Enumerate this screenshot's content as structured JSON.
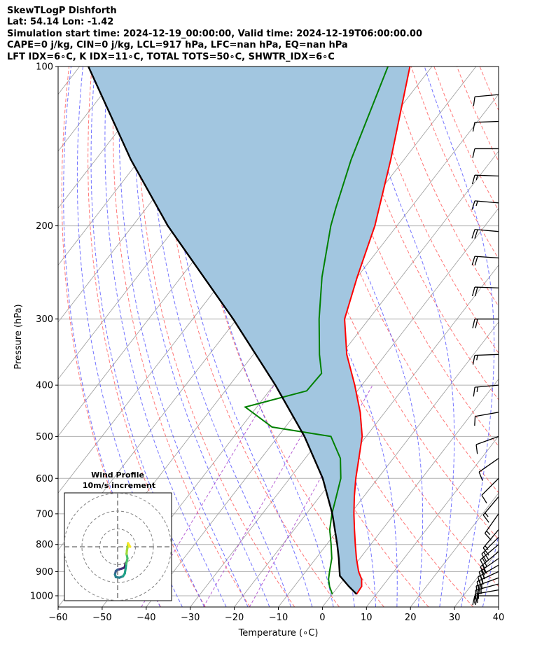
{
  "header": {
    "line1": "SkewTLogP Dishforth",
    "line2": "Lat: 54.14   Lon: -1.42",
    "line3": "Simulation start time: 2024-12-19_00:00:00, Valid time: 2024-12-19T06:00:00.00",
    "line4": "CAPE=0 j/kg, CIN=0 j/kg, LCL=917 hPa, LFC=nan hPa, EQ=nan hPa",
    "line5": "LFT IDX=6∘C, K IDX=11∘C, TOTAL TOTS=50∘C, SHWTR_IDX=6∘C"
  },
  "chart_data": {
    "type": "line",
    "xlabel": "Temperature (∘C)",
    "ylabel": "Pressure (hPa)",
    "xlim": [
      -60,
      40
    ],
    "ylim": [
      1050,
      100
    ],
    "y_scale": "log",
    "grid": true,
    "x_ticks": [
      "−60",
      "−50",
      "−40",
      "−30",
      "−20",
      "−10",
      "0",
      "10",
      "20",
      "30",
      "40"
    ],
    "y_ticks": [
      "100",
      "200",
      "300",
      "400",
      "500",
      "600",
      "700",
      "800",
      "900",
      "1000"
    ],
    "colors": {
      "temperature": "#ff0000",
      "dewpoint": "#008000",
      "parcel": "#000000",
      "cin_shade": "#a2c6e0",
      "dry_adiabat": "#ff5555",
      "moist_adiabat": "#4444ff",
      "mixing_ratio": "#aa44cc"
    },
    "series": [
      {
        "p": [
          993,
          960,
          930,
          900,
          850,
          800,
          750,
          700,
          650,
          600,
          550,
          500,
          450,
          400,
          350,
          300,
          250,
          200,
          150,
          100
        ],
        "values": [
          5.5,
          5.3,
          4.0,
          2.0,
          -0.8,
          -3.5,
          -6.3,
          -9.2,
          -12.1,
          -15.0,
          -17.8,
          -20.9,
          -25.6,
          -31.6,
          -38.8,
          -45.5,
          -50.0,
          -55.0,
          -63.0,
          -75.0
        ]
      },
      {
        "p": [
          993,
          960,
          930,
          900,
          850,
          800,
          750,
          700,
          650,
          600,
          550,
          500,
          480,
          440,
          410,
          380,
          350,
          300,
          250,
          200,
          185,
          150,
          100
        ],
        "values": [
          0.0,
          -2.0,
          -3.5,
          -4.6,
          -6.4,
          -9.0,
          -11.9,
          -14.2,
          -16.2,
          -18.4,
          -22.0,
          -28.0,
          -43.0,
          -52.6,
          -41.5,
          -41.2,
          -45.0,
          -51.3,
          -58.0,
          -65.0,
          -67.0,
          -72.0,
          -80.0
        ]
      },
      {
        "p": [
          993,
          960,
          917,
          850,
          800,
          700,
          600,
          500,
          400,
          300,
          200,
          150,
          100
        ],
        "values": [
          5.5,
          2.4,
          -1.5,
          -4.8,
          -7.6,
          -14.1,
          -22.5,
          -34.0,
          -49.6,
          -70.8,
          -102.0,
          -122.0,
          -148.0
        ]
      }
    ],
    "wind_profile": {
      "title": "Wind Profile",
      "subtitle": "10m/s increment",
      "u": [
        4.5,
        4.3,
        4.0,
        3.0,
        2.0,
        1.0,
        0.0,
        -1.0,
        -1.5,
        -1.0,
        1.0,
        3.0,
        4.0,
        4.5,
        4.8,
        5.5,
        5.0,
        5.2,
        5.6,
        5.8,
        7.0,
        6.5
      ],
      "v": [
        -9.0,
        -10.0,
        -11.5,
        -12.0,
        -12.3,
        -12.6,
        -12.8,
        -13.6,
        -15.5,
        -17.0,
        -17.3,
        -16.5,
        -15.0,
        -12.0,
        -9.5,
        -6.5,
        -4.0,
        -2.0,
        0.0,
        2.0,
        0.0,
        0.3
      ]
    },
    "wind_barbs": [
      {
        "p": 1000,
        "speed": 20,
        "dir": 270
      },
      {
        "p": 975,
        "speed": 22,
        "dir": 280
      },
      {
        "p": 950,
        "speed": 25,
        "dir": 285
      },
      {
        "p": 925,
        "speed": 27,
        "dir": 290
      },
      {
        "p": 900,
        "speed": 28,
        "dir": 295
      },
      {
        "p": 875,
        "speed": 26,
        "dir": 300
      },
      {
        "p": 850,
        "speed": 25,
        "dir": 305
      },
      {
        "p": 825,
        "speed": 23,
        "dir": 310
      },
      {
        "p": 800,
        "speed": 22,
        "dir": 310
      },
      {
        "p": 775,
        "speed": 20,
        "dir": 315
      },
      {
        "p": 750,
        "speed": 18,
        "dir": 320
      },
      {
        "p": 700,
        "speed": 16,
        "dir": 325
      },
      {
        "p": 650,
        "speed": 15,
        "dir": 320
      },
      {
        "p": 600,
        "speed": 14,
        "dir": 315
      },
      {
        "p": 550,
        "speed": 12,
        "dir": 305
      },
      {
        "p": 500,
        "speed": 10,
        "dir": 290
      },
      {
        "p": 450,
        "speed": 12,
        "dir": 280
      },
      {
        "p": 400,
        "speed": 15,
        "dir": 275
      },
      {
        "p": 350,
        "speed": 17,
        "dir": 272
      },
      {
        "p": 300,
        "speed": 20,
        "dir": 270
      },
      {
        "p": 262,
        "speed": 22,
        "dir": 268
      },
      {
        "p": 230,
        "speed": 22,
        "dir": 266
      },
      {
        "p": 205,
        "speed": 20,
        "dir": 265
      },
      {
        "p": 181,
        "speed": 18,
        "dir": 265
      },
      {
        "p": 161,
        "speed": 15,
        "dir": 268
      },
      {
        "p": 143,
        "speed": 14,
        "dir": 270
      },
      {
        "p": 127,
        "speed": 13,
        "dir": 272
      },
      {
        "p": 113,
        "speed": 12,
        "dir": 275
      }
    ]
  }
}
